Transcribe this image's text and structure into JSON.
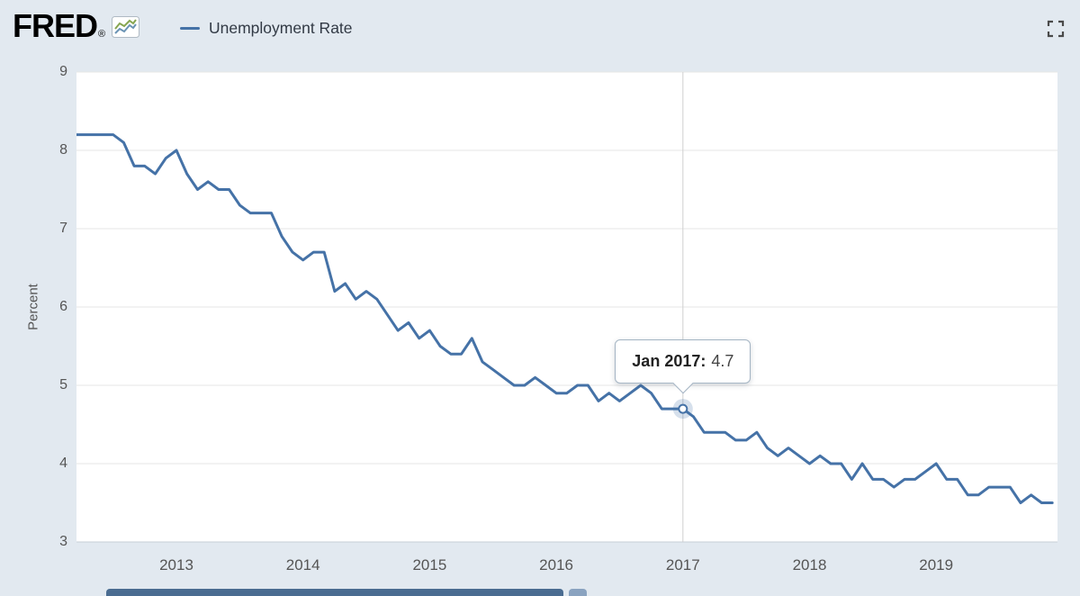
{
  "header": {
    "logo_text": "FRED",
    "registered_mark": "®",
    "legend_label": "Unemployment Rate"
  },
  "chart_data": {
    "type": "line",
    "title": "",
    "ylabel": "Percent",
    "xlabel": "",
    "ylim": [
      3,
      9
    ],
    "y_ticks": [
      3,
      4,
      5,
      6,
      7,
      8,
      9
    ],
    "x_ticks": [
      2013,
      2014,
      2015,
      2016,
      2017,
      2018,
      2019
    ],
    "x_start": "2012-03",
    "frequency": "monthly",
    "grid": "horizontal",
    "legend_position": "top-left-header",
    "series": [
      {
        "name": "Unemployment Rate",
        "color": "#4572a7",
        "values": [
          8.2,
          8.2,
          8.2,
          8.2,
          8.2,
          8.1,
          7.8,
          7.8,
          7.7,
          7.9,
          8.0,
          7.7,
          7.5,
          7.6,
          7.5,
          7.5,
          7.3,
          7.2,
          7.2,
          7.2,
          6.9,
          6.7,
          6.6,
          6.7,
          6.7,
          6.2,
          6.3,
          6.1,
          6.2,
          6.1,
          5.9,
          5.7,
          5.8,
          5.6,
          5.7,
          5.5,
          5.4,
          5.4,
          5.6,
          5.3,
          5.2,
          5.1,
          5.0,
          5.0,
          5.1,
          5.0,
          4.9,
          4.9,
          5.0,
          5.0,
          4.8,
          4.9,
          4.8,
          4.9,
          5.0,
          4.9,
          4.7,
          4.7,
          4.7,
          4.6,
          4.4,
          4.4,
          4.4,
          4.3,
          4.3,
          4.4,
          4.2,
          4.1,
          4.2,
          4.1,
          4.0,
          4.1,
          4.0,
          4.0,
          3.8,
          4.0,
          3.8,
          3.8,
          3.7,
          3.8,
          3.8,
          3.9,
          4.0,
          3.8,
          3.8,
          3.6,
          3.6,
          3.7,
          3.7,
          3.7,
          3.5,
          3.6,
          3.5,
          3.5
        ]
      }
    ],
    "tooltip": {
      "label": "Jan 2017:",
      "value": "4.7",
      "x_year": 2017.0,
      "y_value": 4.7
    }
  },
  "colors": {
    "background": "#e2e9f0",
    "plot_background": "#ffffff",
    "line": "#4572a7",
    "gridline": "#e6e6e6",
    "axis_line": "#c6ced6",
    "crosshair": "#cfcfcf",
    "scrollbar": "#4a6c91"
  }
}
